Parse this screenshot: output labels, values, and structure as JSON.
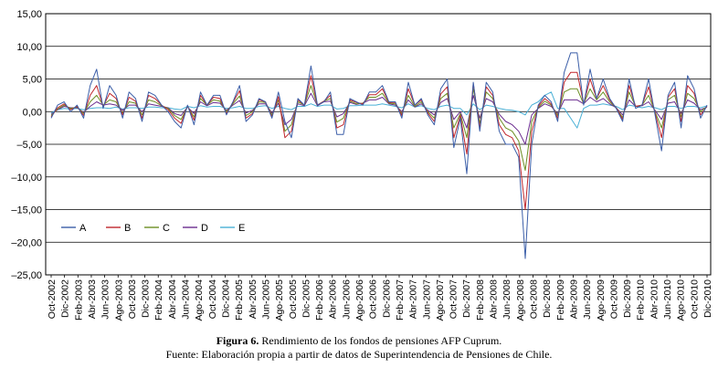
{
  "chart_data": {
    "type": "line",
    "ylim": [
      -25,
      15
    ],
    "yticks": [
      "15,00",
      "10,00",
      "5,00",
      "0,00",
      "–5,00",
      "–10,00",
      "–15,00",
      "–20,00",
      "–25,00"
    ],
    "grid": "horizontal",
    "legend_placement": "bottom-left",
    "xtick_labels": [
      "Oct-2002",
      "Dic-2002",
      "Feb-2003",
      "Abr-2003",
      "Jun-2003",
      "Ago-2003",
      "Oct-2003",
      "Dic-2003",
      "Feb-2004",
      "Abr-2004",
      "Jun-2004",
      "Ago-2004",
      "Oct-2004",
      "Dic-2004",
      "Feb-2005",
      "Abr-2005",
      "Jun-2005",
      "Ago-2005",
      "Oct-2005",
      "Dic-2005",
      "Feb-2006",
      "Abr-2006",
      "Jun-2006",
      "Ago-2006",
      "Oct-2006",
      "Dic-2006",
      "Feb-2007",
      "Abr-2007",
      "Jun-2007",
      "Ago-2007",
      "Oct-2007",
      "Dic-2007",
      "Feb-2008",
      "Abr-2008",
      "Jun-2008",
      "Ago-2008",
      "Oct-2008",
      "Dic-2008",
      "Feb-2009",
      "Abr-2009",
      "Jun-2009",
      "Ago-2009",
      "Oct-2009",
      "Dic-2009",
      "Feb-2010",
      "Abr-2010",
      "Jun-2010",
      "Ago-2010",
      "Oct-2010",
      "Dic-2010"
    ],
    "series": [
      {
        "name": "A",
        "color": "#3b5ea8",
        "values": [
          -1.0,
          1.0,
          1.5,
          0.0,
          1.0,
          -1.0,
          4.0,
          6.5,
          0.5,
          4.0,
          2.5,
          -1.0,
          3.0,
          2.0,
          -1.5,
          3.0,
          2.5,
          1.0,
          0.0,
          -1.5,
          -2.5,
          1.0,
          -2.0,
          3.0,
          1.0,
          2.5,
          2.5,
          -0.5,
          1.5,
          4.0,
          -1.5,
          -0.5,
          2.0,
          1.5,
          -1.0,
          3.0,
          -1.5,
          -4.0,
          2.0,
          1.0,
          7.0,
          1.0,
          1.5,
          3.0,
          -3.5,
          -3.5,
          2.0,
          1.5,
          1.0,
          3.0,
          3.0,
          4.0,
          1.5,
          1.5,
          -1.0,
          4.5,
          1.0,
          2.0,
          -0.5,
          -2.0,
          3.5,
          5.0,
          -5.5,
          -1.0,
          -9.5,
          4.5,
          -3.0,
          4.5,
          3.0,
          -3.0,
          -5.0,
          -5.0,
          -7.0,
          -22.5,
          -5.0,
          1.0,
          2.5,
          1.5,
          -1.5,
          6.0,
          9.0,
          9.0,
          1.0,
          6.5,
          2.0,
          5.0,
          2.0,
          0.5,
          -1.5,
          5.0,
          0.5,
          1.0,
          5.0,
          -0.5,
          -6.0,
          2.5,
          4.5,
          -2.5,
          5.5,
          3.5,
          -1.0,
          1.0
        ]
      },
      {
        "name": "B",
        "color": "#c0272d",
        "values": [
          -0.8,
          0.6,
          1.2,
          0.3,
          0.8,
          -0.6,
          2.5,
          4.0,
          0.8,
          2.8,
          2.0,
          -0.5,
          2.2,
          1.6,
          -1.0,
          2.5,
          2.0,
          1.0,
          0.3,
          -1.0,
          -1.8,
          0.9,
          -1.3,
          2.5,
          1.0,
          2.2,
          2.0,
          -0.3,
          1.4,
          3.2,
          -1.0,
          -0.3,
          1.8,
          1.5,
          -0.8,
          2.3,
          -4.0,
          -3.0,
          1.8,
          1.0,
          5.5,
          1.0,
          1.6,
          2.5,
          -2.5,
          -2.0,
          1.8,
          1.4,
          1.2,
          2.6,
          2.6,
          3.5,
          1.4,
          1.4,
          -0.6,
          3.5,
          1.0,
          1.8,
          -0.2,
          -1.5,
          2.7,
          3.8,
          -4.0,
          -0.6,
          -6.5,
          4.3,
          -2.5,
          3.8,
          2.5,
          -2.0,
          -3.5,
          -4.0,
          -6.0,
          -15.0,
          -3.0,
          0.8,
          2.0,
          1.2,
          -1.0,
          4.5,
          6.0,
          6.0,
          1.2,
          5.0,
          2.0,
          4.0,
          1.8,
          0.6,
          -1.2,
          4.0,
          0.8,
          1.0,
          3.8,
          -0.2,
          -4.0,
          2.2,
          3.5,
          -1.5,
          4.0,
          2.8,
          -0.5,
          0.8
        ]
      },
      {
        "name": "C",
        "color": "#6b8e23",
        "values": [
          -0.6,
          0.4,
          1.0,
          0.5,
          0.7,
          -0.3,
          1.5,
          2.5,
          1.0,
          1.8,
          1.5,
          -0.2,
          1.5,
          1.3,
          -0.5,
          1.8,
          1.5,
          0.9,
          0.5,
          -0.6,
          -1.2,
          0.8,
          -0.8,
          2.0,
          1.0,
          1.8,
          1.6,
          0.0,
          1.2,
          2.4,
          -0.6,
          0.0,
          1.5,
          1.4,
          -0.5,
          1.8,
          -3.0,
          -2.0,
          1.5,
          1.0,
          4.0,
          1.0,
          1.6,
          2.0,
          -1.6,
          -1.0,
          1.6,
          1.2,
          1.3,
          2.2,
          2.2,
          2.8,
          1.3,
          1.2,
          -0.3,
          2.5,
          0.8,
          1.5,
          0.0,
          -1.0,
          2.0,
          2.8,
          -2.5,
          -0.3,
          -4.0,
          3.5,
          -1.8,
          3.0,
          2.0,
          -1.0,
          -2.5,
          -3.0,
          -4.5,
          -9.0,
          -1.5,
          0.6,
          1.6,
          1.0,
          -0.6,
          3.0,
          3.5,
          3.5,
          1.2,
          3.5,
          1.8,
          3.0,
          1.5,
          0.6,
          -0.9,
          3.0,
          0.8,
          1.0,
          2.5,
          0.0,
          -2.5,
          1.8,
          2.5,
          -0.8,
          2.8,
          2.0,
          0.0,
          0.8
        ]
      },
      {
        "name": "D",
        "color": "#6a2c8e",
        "values": [
          -0.4,
          0.3,
          0.8,
          0.6,
          0.6,
          -0.1,
          0.8,
          1.5,
          1.0,
          1.2,
          1.0,
          0.2,
          1.0,
          1.0,
          0.0,
          1.2,
          1.0,
          0.8,
          0.6,
          -0.3,
          -0.6,
          0.7,
          -0.3,
          1.5,
          0.9,
          1.4,
          1.3,
          0.2,
          1.0,
          1.7,
          -0.2,
          0.2,
          1.2,
          1.2,
          -0.2,
          1.3,
          -2.0,
          -1.2,
          1.2,
          0.9,
          2.8,
          0.9,
          1.5,
          1.6,
          -0.8,
          -0.3,
          1.4,
          1.1,
          1.3,
          1.8,
          1.8,
          2.2,
          1.2,
          1.0,
          0.0,
          1.8,
          0.7,
          1.2,
          0.2,
          -0.5,
          1.4,
          2.0,
          -1.2,
          0.0,
          -2.5,
          2.5,
          -1.0,
          2.0,
          1.5,
          -0.4,
          -1.5,
          -2.0,
          -3.0,
          -5.0,
          -0.5,
          0.5,
          1.2,
          0.8,
          -0.3,
          1.8,
          1.8,
          1.8,
          1.2,
          2.2,
          1.5,
          2.0,
          1.2,
          0.6,
          -0.5,
          1.8,
          0.8,
          0.9,
          1.5,
          0.2,
          -1.2,
          1.3,
          1.5,
          -0.3,
          1.8,
          1.3,
          0.3,
          0.7
        ]
      },
      {
        "name": "E",
        "color": "#49b0d6",
        "values": [
          -0.2,
          0.3,
          0.5,
          0.4,
          0.5,
          0.3,
          0.5,
          0.6,
          0.6,
          0.5,
          0.7,
          0.4,
          0.6,
          0.6,
          0.5,
          0.7,
          0.7,
          0.6,
          0.6,
          0.4,
          0.3,
          0.8,
          0.6,
          0.9,
          0.7,
          0.8,
          0.8,
          0.5,
          0.6,
          0.8,
          0.5,
          0.5,
          0.8,
          0.9,
          0.5,
          0.8,
          0.5,
          0.3,
          0.8,
          0.8,
          1.2,
          0.8,
          1.0,
          1.0,
          0.4,
          0.5,
          0.9,
          0.9,
          1.0,
          1.0,
          1.0,
          1.2,
          1.0,
          0.8,
          0.6,
          1.2,
          0.7,
          0.9,
          0.5,
          0.3,
          0.8,
          1.0,
          0.5,
          0.5,
          -0.5,
          1.2,
          0.3,
          1.0,
          0.8,
          0.5,
          0.3,
          0.2,
          0.0,
          -0.5,
          1.0,
          1.5,
          2.5,
          3.0,
          0.5,
          0.5,
          -1.0,
          -2.5,
          0.5,
          1.0,
          1.0,
          1.2,
          1.0,
          0.8,
          0.3,
          1.0,
          0.8,
          0.6,
          0.8,
          0.6,
          0.3,
          0.8,
          0.8,
          0.5,
          0.8,
          0.8,
          0.6,
          0.9
        ]
      }
    ]
  },
  "caption": {
    "figure_label": "Figura 6.",
    "figure_title": " Rendimiento de los fondos de pensiones AFP Cuprum.",
    "source": "Fuente: Elaboración propia a partir de datos de Superintendencia de Pensiones de Chile."
  }
}
